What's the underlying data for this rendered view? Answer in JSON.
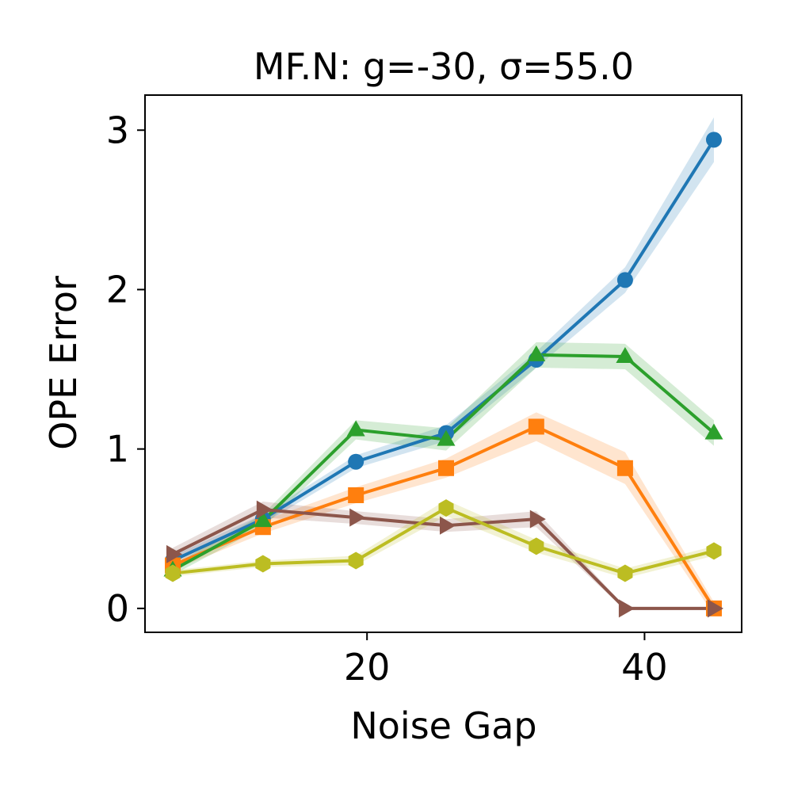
{
  "chart_data": {
    "type": "line",
    "title": "MF.N: g=-30, σ=55.0",
    "xlabel": "Noise Gap",
    "ylabel": "OPE Error",
    "xlim": [
      4,
      47
    ],
    "ylim": [
      -0.15,
      3.22
    ],
    "xticks": [
      20,
      40
    ],
    "yticks": [
      0,
      1,
      2,
      3
    ],
    "grid": false,
    "legend": "none",
    "series": [
      {
        "name": "blue",
        "color": "#1f77b4",
        "marker": "circle",
        "x": [
          6,
          12.5,
          19.2,
          25.7,
          32.2,
          38.6,
          45
        ],
        "y": [
          0.3,
          0.56,
          0.92,
          1.1,
          1.56,
          2.06,
          2.94
        ],
        "band": [
          0.03,
          0.03,
          0.04,
          0.05,
          0.05,
          0.08,
          0.14
        ]
      },
      {
        "name": "orange",
        "color": "#ff7f0e",
        "marker": "square",
        "x": [
          6,
          12.5,
          19.2,
          25.7,
          32.2,
          38.6,
          45
        ],
        "y": [
          0.27,
          0.51,
          0.71,
          0.88,
          1.14,
          0.88,
          0.0
        ],
        "band": [
          0.03,
          0.04,
          0.05,
          0.06,
          0.09,
          0.1,
          0.04
        ]
      },
      {
        "name": "green",
        "color": "#2ca02c",
        "marker": "triangle-up",
        "x": [
          6,
          12.5,
          19.2,
          25.7,
          32.2,
          38.6,
          45
        ],
        "y": [
          0.24,
          0.55,
          1.12,
          1.06,
          1.59,
          1.58,
          1.1
        ],
        "band": [
          0.03,
          0.04,
          0.06,
          0.07,
          0.08,
          0.08,
          0.08
        ]
      },
      {
        "name": "brown",
        "color": "#8c564b",
        "marker": "triangle-right",
        "x": [
          6,
          12.5,
          19.2,
          25.7,
          32.2,
          38.6,
          45
        ],
        "y": [
          0.34,
          0.62,
          0.57,
          0.52,
          0.56,
          0.0,
          0.0
        ],
        "band": [
          0.04,
          0.05,
          0.04,
          0.04,
          0.05,
          0.01,
          0.01
        ]
      },
      {
        "name": "olive",
        "color": "#bcbd22",
        "marker": "hexagon",
        "x": [
          6,
          12.5,
          19.2,
          25.7,
          32.2,
          38.6,
          45
        ],
        "y": [
          0.22,
          0.28,
          0.3,
          0.63,
          0.39,
          0.22,
          0.36
        ],
        "band": [
          0.02,
          0.02,
          0.03,
          0.05,
          0.04,
          0.03,
          0.03
        ]
      }
    ]
  }
}
